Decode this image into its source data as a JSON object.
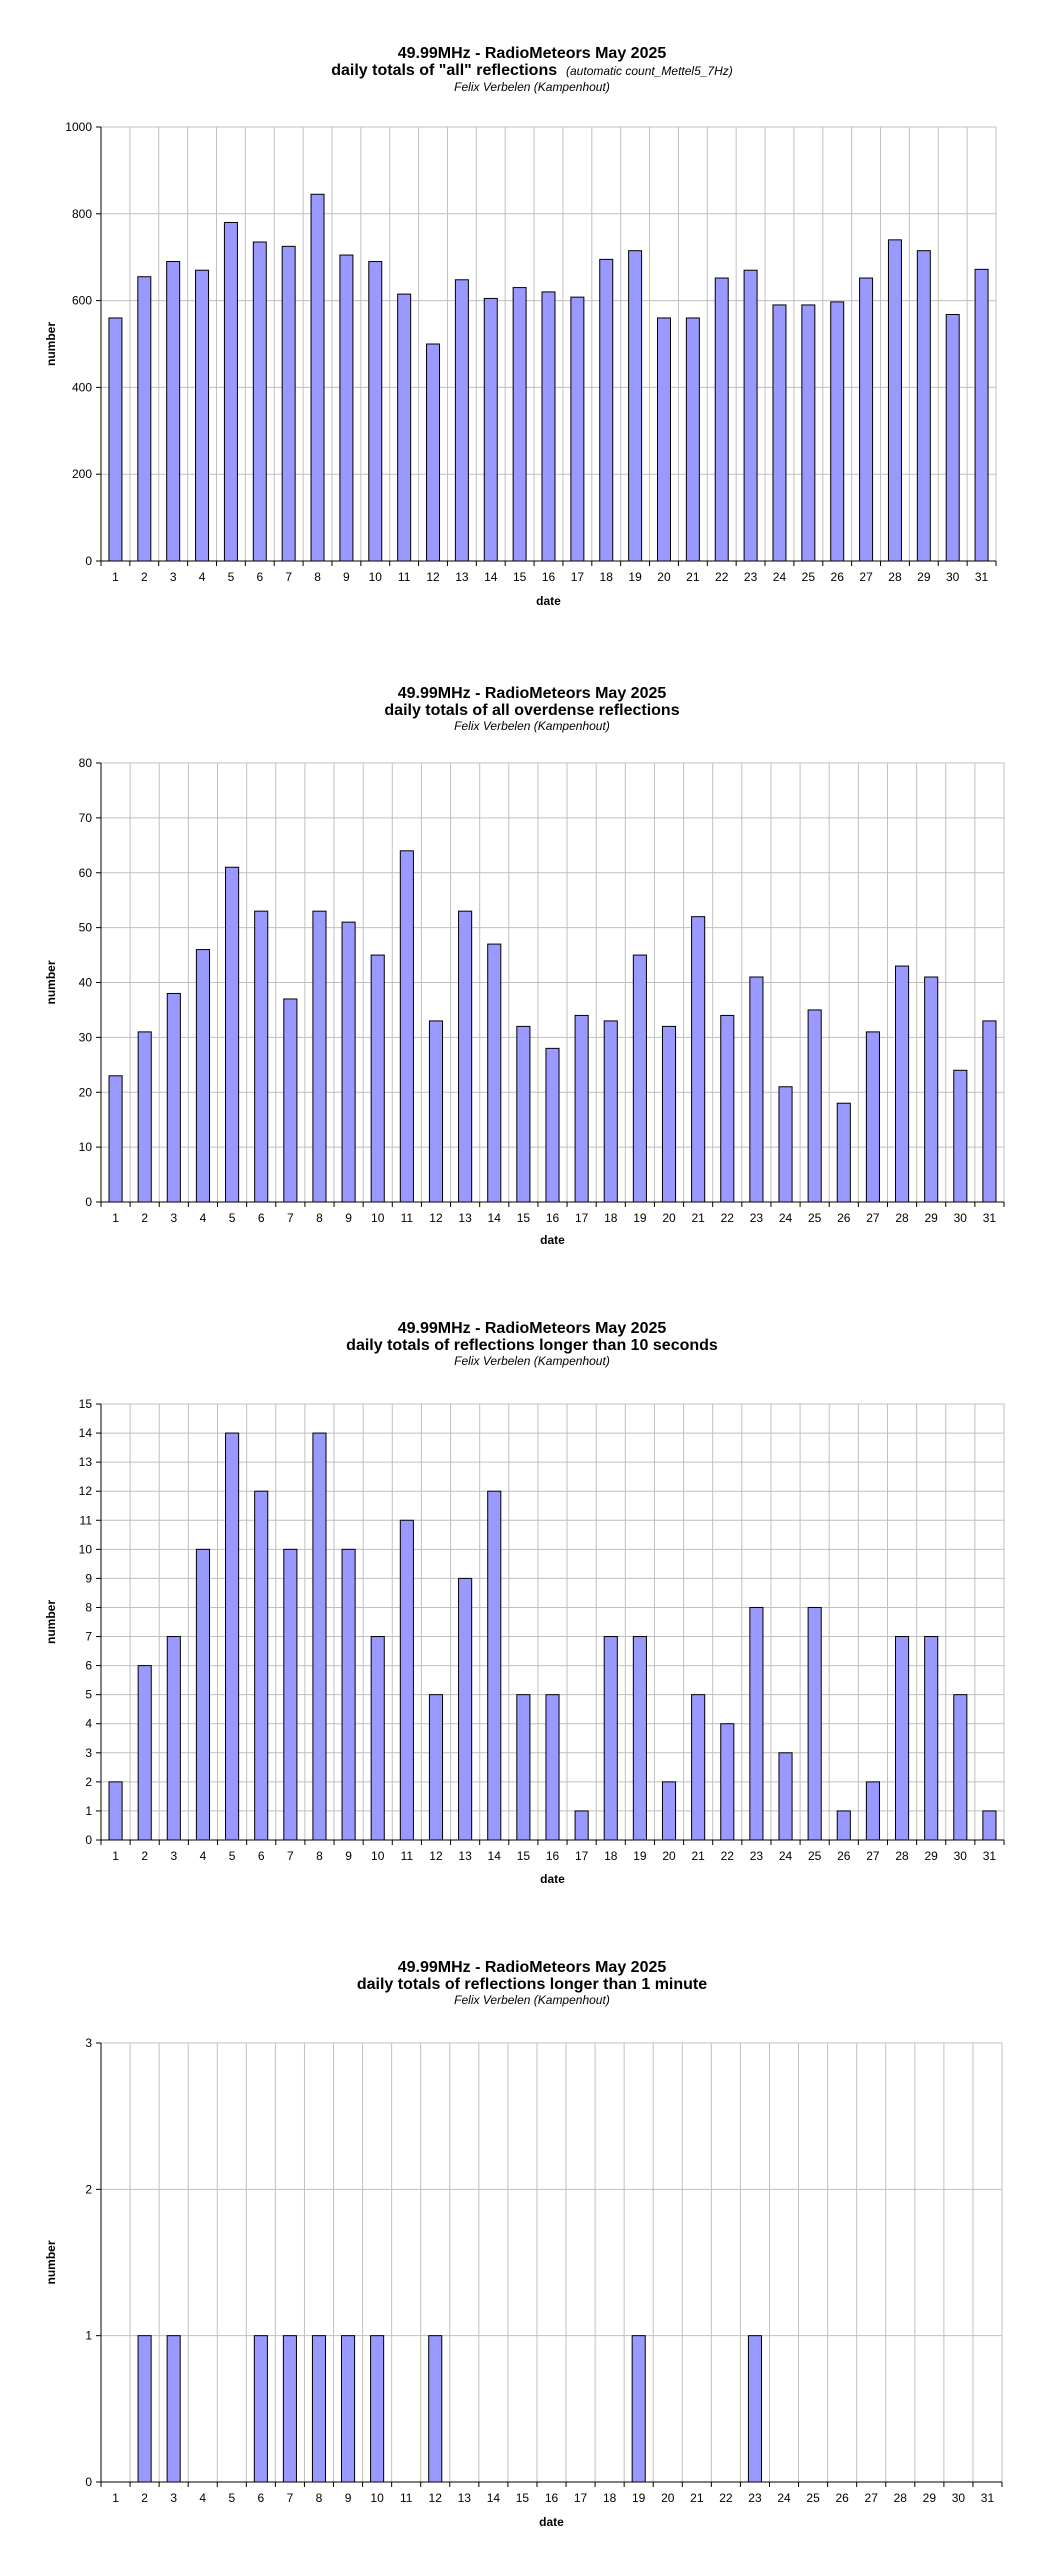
{
  "chart_data": [
    {
      "type": "bar",
      "title": "49.99MHz - RadioMeteors May 2025",
      "subtitle": "daily totals of \"all\" reflections",
      "subtitle_note": "(automatic count_Mettel5_7Hz)",
      "author": "Felix Verbelen (Kampenhout)",
      "xlabel": "date",
      "ylabel": "number",
      "ylim": [
        0,
        1000
      ],
      "yticks": [
        0,
        200,
        400,
        600,
        800,
        1000
      ],
      "grid": true,
      "categories": [
        "1",
        "2",
        "3",
        "4",
        "5",
        "6",
        "7",
        "8",
        "9",
        "10",
        "11",
        "12",
        "13",
        "14",
        "15",
        "16",
        "17",
        "18",
        "19",
        "20",
        "21",
        "22",
        "23",
        "24",
        "25",
        "26",
        "27",
        "28",
        "29",
        "30",
        "31"
      ],
      "values": [
        560,
        655,
        690,
        670,
        780,
        735,
        725,
        845,
        705,
        690,
        615,
        500,
        648,
        605,
        630,
        620,
        608,
        695,
        715,
        560,
        560,
        652,
        670,
        590,
        590,
        597,
        652,
        740,
        715,
        568,
        672
      ]
    },
    {
      "type": "bar",
      "title": "49.99MHz - RadioMeteors May 2025",
      "subtitle": "daily totals of all overdense reflections",
      "subtitle_note": "",
      "author": "Felix Verbelen (Kampenhout)",
      "xlabel": "date",
      "ylabel": "number",
      "ylim": [
        0,
        80
      ],
      "yticks": [
        0,
        10,
        20,
        30,
        40,
        50,
        60,
        70,
        80
      ],
      "grid": true,
      "categories": [
        "1",
        "2",
        "3",
        "4",
        "5",
        "6",
        "7",
        "8",
        "9",
        "10",
        "11",
        "12",
        "13",
        "14",
        "15",
        "16",
        "17",
        "18",
        "19",
        "20",
        "21",
        "22",
        "23",
        "24",
        "25",
        "26",
        "27",
        "28",
        "29",
        "30",
        "31"
      ],
      "values": [
        23,
        31,
        38,
        46,
        61,
        53,
        37,
        53,
        51,
        45,
        64,
        33,
        53,
        47,
        32,
        28,
        34,
        33,
        45,
        32,
        52,
        34,
        41,
        21,
        35,
        18,
        31,
        43,
        41,
        24,
        33
      ]
    },
    {
      "type": "bar",
      "title": "49.99MHz - RadioMeteors May 2025",
      "subtitle": "daily totals of reflections longer than 10 seconds",
      "subtitle_note": "",
      "author": "Felix Verbelen (Kampenhout)",
      "xlabel": "date",
      "ylabel": "number",
      "ylim": [
        0,
        15
      ],
      "yticks": [
        0,
        1,
        2,
        3,
        4,
        5,
        6,
        7,
        8,
        9,
        10,
        11,
        12,
        13,
        14,
        15
      ],
      "grid": true,
      "categories": [
        "1",
        "2",
        "3",
        "4",
        "5",
        "6",
        "7",
        "8",
        "9",
        "10",
        "11",
        "12",
        "13",
        "14",
        "15",
        "16",
        "17",
        "18",
        "19",
        "20",
        "21",
        "22",
        "23",
        "24",
        "25",
        "26",
        "27",
        "28",
        "29",
        "30",
        "31"
      ],
      "values": [
        2,
        6,
        7,
        10,
        14,
        12,
        10,
        14,
        10,
        7,
        11,
        5,
        9,
        12,
        5,
        5,
        1,
        7,
        7,
        2,
        5,
        4,
        8,
        3,
        8,
        1,
        2,
        7,
        7,
        5,
        1
      ]
    },
    {
      "type": "bar",
      "title": "49.99MHz - RadioMeteors May 2025",
      "subtitle": "daily totals of reflections longer than 1 minute",
      "subtitle_note": "",
      "author": "Felix Verbelen (Kampenhout)",
      "xlabel": "date",
      "ylabel": "number",
      "ylim": [
        0,
        3
      ],
      "yticks": [
        0,
        1,
        2,
        3
      ],
      "grid": true,
      "categories": [
        "1",
        "2",
        "3",
        "4",
        "5",
        "6",
        "7",
        "8",
        "9",
        "10",
        "11",
        "12",
        "13",
        "14",
        "15",
        "16",
        "17",
        "18",
        "19",
        "20",
        "21",
        "22",
        "23",
        "24",
        "25",
        "26",
        "27",
        "28",
        "29",
        "30",
        "31"
      ],
      "values": [
        0,
        1,
        1,
        0,
        0,
        1,
        1,
        1,
        1,
        1,
        0,
        1,
        0,
        0,
        0,
        0,
        0,
        0,
        1,
        0,
        0,
        0,
        1,
        0,
        0,
        0,
        0,
        0,
        0,
        0,
        0
      ]
    }
  ],
  "colors": {
    "bar_fill": "#9999FF",
    "bar_stroke": "#000000",
    "grid": "#C0C0C0",
    "axis": "#000000"
  }
}
